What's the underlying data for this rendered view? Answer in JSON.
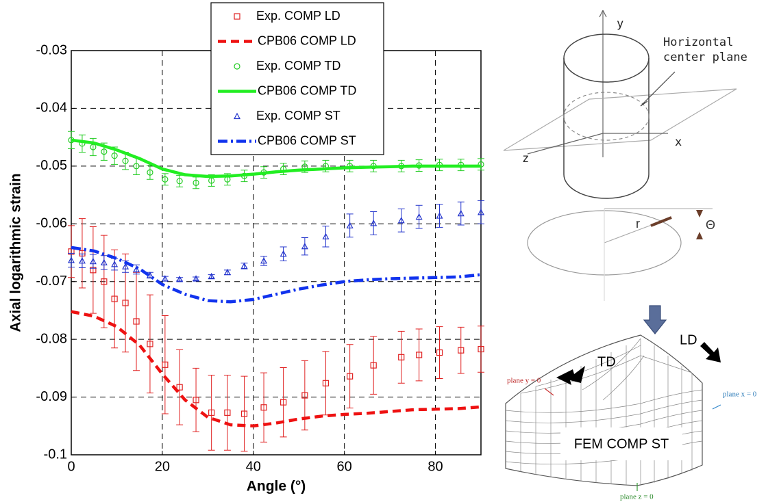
{
  "chart_data": {
    "type": "line",
    "xlabel": "Angle (°)",
    "ylabel": "Axial logarithmic strain",
    "xlim": [
      0,
      90
    ],
    "ylim": [
      -0.1,
      -0.03
    ],
    "xticks": [
      0,
      20,
      40,
      60,
      80
    ],
    "yticks": [
      -0.1,
      -0.09,
      -0.08,
      -0.07,
      -0.06,
      -0.05,
      -0.04,
      -0.03
    ],
    "grid": true,
    "legend": "top",
    "series": [
      {
        "name": "Exp. COMP LD",
        "color": "#e02020",
        "marker": "square",
        "x": [
          0,
          2.4,
          4.8,
          7.2,
          9.5,
          11.9,
          14.3,
          17.3,
          20.6,
          23.8,
          27.4,
          30.8,
          34.3,
          38.0,
          42.3,
          46.6,
          51.3,
          55.9,
          61.2,
          66.4,
          72.5,
          76.4,
          80.9,
          85.6,
          90
        ],
        "values": [
          -0.0648,
          -0.0651,
          -0.068,
          -0.07,
          -0.073,
          -0.0737,
          -0.0769,
          -0.0808,
          -0.0844,
          -0.0883,
          -0.0905,
          -0.0927,
          -0.0927,
          -0.0929,
          -0.0918,
          -0.0909,
          -0.0897,
          -0.0876,
          -0.0864,
          -0.0845,
          -0.0831,
          -0.0827,
          -0.0823,
          -0.0819,
          -0.0817
        ],
        "errors": [
          0.0045,
          0.006,
          0.0075,
          0.008,
          0.0085,
          0.0085,
          0.0085,
          0.0085,
          0.0085,
          0.0065,
          0.0055,
          0.0065,
          0.0065,
          0.0065,
          0.006,
          0.006,
          0.006,
          0.0055,
          0.0055,
          0.005,
          0.0045,
          0.0045,
          0.0045,
          0.004,
          0.004
        ]
      },
      {
        "name": "CPB06 COMP LD",
        "color": "#ee1111",
        "dash": "dashed",
        "x": [
          0,
          5,
          10,
          15,
          20,
          25,
          30,
          35,
          40,
          45,
          50,
          55,
          60,
          65,
          70,
          75,
          80,
          85,
          90
        ],
        "values": [
          -0.0752,
          -0.076,
          -0.0778,
          -0.081,
          -0.086,
          -0.0905,
          -0.0935,
          -0.0948,
          -0.095,
          -0.0945,
          -0.0938,
          -0.0933,
          -0.093,
          -0.0928,
          -0.0925,
          -0.0922,
          -0.0921,
          -0.092,
          -0.0917
        ]
      },
      {
        "name": "Exp. COMP TD",
        "color": "#22cc22",
        "marker": "circle",
        "x": [
          0,
          2.4,
          4.8,
          7.2,
          9.5,
          11.9,
          14.3,
          17.3,
          20.6,
          23.8,
          27.4,
          30.8,
          34.3,
          38.0,
          42.3,
          46.6,
          51.3,
          55.9,
          61.2,
          66.4,
          72.5,
          76.4,
          80.9,
          85.6,
          90
        ],
        "values": [
          -0.0455,
          -0.0461,
          -0.0467,
          -0.0475,
          -0.0482,
          -0.0491,
          -0.05,
          -0.0511,
          -0.0523,
          -0.0526,
          -0.0529,
          -0.0525,
          -0.0523,
          -0.0517,
          -0.0511,
          -0.0505,
          -0.0501,
          -0.05,
          -0.05,
          -0.05,
          -0.05,
          -0.0499,
          -0.0498,
          -0.0498,
          -0.0497
        ],
        "errors": [
          0.0015,
          0.0015,
          0.0015,
          0.0015,
          0.0015,
          0.0015,
          0.0015,
          0.0012,
          0.001,
          0.001,
          0.001,
          0.001,
          0.001,
          0.001,
          0.001,
          0.001,
          0.001,
          0.001,
          0.001,
          0.001,
          0.001,
          0.001,
          0.001,
          0.001,
          0.001
        ]
      },
      {
        "name": "CPB06 COMP TD",
        "color": "#22ee22",
        "dash": "solid",
        "x": [
          0,
          5,
          10,
          15,
          20,
          25,
          30,
          35,
          40,
          45,
          50,
          55,
          60,
          65,
          70,
          75,
          80,
          85,
          90
        ],
        "values": [
          -0.0455,
          -0.046,
          -0.0472,
          -0.0487,
          -0.0505,
          -0.0515,
          -0.0518,
          -0.0517,
          -0.0514,
          -0.051,
          -0.0507,
          -0.0505,
          -0.0503,
          -0.0502,
          -0.0501,
          -0.05,
          -0.05,
          -0.05,
          -0.05
        ]
      },
      {
        "name": "Exp. COMP ST",
        "color": "#2233cc",
        "marker": "triangle",
        "x": [
          0,
          2.4,
          4.8,
          7.2,
          9.5,
          11.9,
          14.3,
          17.3,
          20.6,
          23.8,
          27.4,
          30.8,
          34.3,
          38.0,
          42.3,
          46.6,
          51.3,
          55.9,
          61.2,
          66.4,
          72.5,
          76.4,
          80.9,
          85.6,
          90
        ],
        "values": [
          -0.0663,
          -0.0664,
          -0.0665,
          -0.0667,
          -0.067,
          -0.0674,
          -0.0679,
          -0.0689,
          -0.0695,
          -0.0696,
          -0.0695,
          -0.0691,
          -0.0684,
          -0.0673,
          -0.0664,
          -0.0652,
          -0.0639,
          -0.0622,
          -0.0603,
          -0.0599,
          -0.0594,
          -0.0588,
          -0.0586,
          -0.0582,
          -0.058
        ],
        "errors": [
          0.0012,
          0.0012,
          0.0012,
          0.0012,
          0.001,
          0.001,
          0.0008,
          0.0005,
          0.0004,
          0.0003,
          0.0003,
          0.0003,
          0.0004,
          0.0005,
          0.0008,
          0.0012,
          0.0015,
          0.0018,
          0.002,
          0.002,
          0.002,
          0.002,
          0.002,
          0.002,
          0.002
        ]
      },
      {
        "name": "CPB06 COMP ST",
        "color": "#1133ee",
        "dash": "dashdot",
        "x": [
          0,
          5,
          10,
          15,
          20,
          25,
          30,
          35,
          40,
          45,
          50,
          55,
          60,
          65,
          70,
          75,
          80,
          85,
          90
        ],
        "values": [
          -0.0641,
          -0.0647,
          -0.066,
          -0.0678,
          -0.0705,
          -0.0722,
          -0.0733,
          -0.0735,
          -0.0731,
          -0.0722,
          -0.0713,
          -0.0706,
          -0.07,
          -0.0697,
          -0.0695,
          -0.0694,
          -0.0693,
          -0.0692,
          -0.0688
        ]
      }
    ]
  },
  "diagram": {
    "axis_y": "y",
    "axis_x": "x",
    "axis_z": "z",
    "plane_label": [
      "Horizontal",
      "center plane"
    ],
    "radius": "r",
    "angle": "Θ",
    "td": "TD",
    "ld": "LD",
    "plane_y": "plane y = 0",
    "plane_x": "plane x = 0",
    "plane_z": "plane z = 0",
    "fem_label": "FEM COMP ST"
  }
}
